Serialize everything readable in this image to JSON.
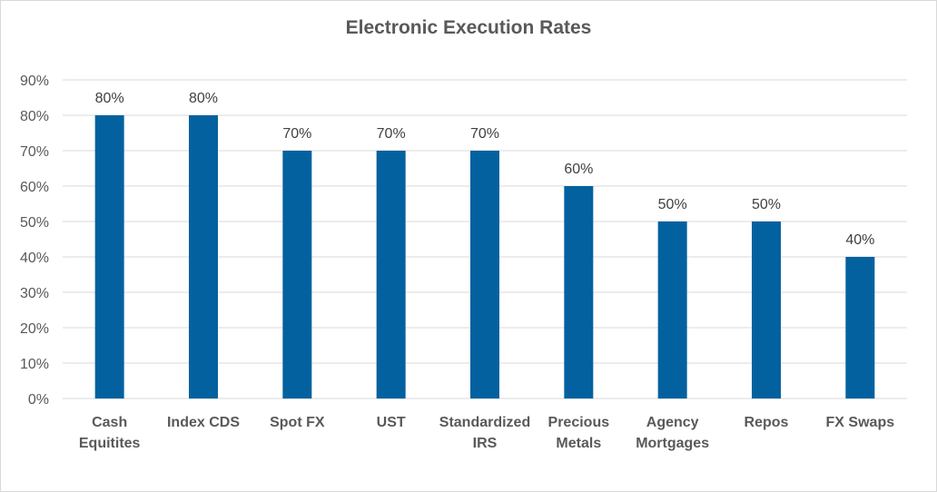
{
  "chart_data": {
    "type": "bar",
    "title": "Electronic Execution Rates",
    "categories": [
      [
        "Cash",
        "Equitites"
      ],
      [
        "Index CDS"
      ],
      [
        "Spot FX"
      ],
      [
        "UST"
      ],
      [
        "Standardized",
        "IRS"
      ],
      [
        "Precious",
        "Metals"
      ],
      [
        "Agency",
        "Mortgages"
      ],
      [
        "Repos"
      ],
      [
        "FX Swaps"
      ]
    ],
    "values": [
      80,
      80,
      70,
      70,
      70,
      60,
      50,
      50,
      40
    ],
    "data_labels": [
      "80%",
      "80%",
      "70%",
      "70%",
      "70%",
      "60%",
      "50%",
      "50%",
      "40%"
    ],
    "y_ticks": [
      "0%",
      "10%",
      "20%",
      "30%",
      "40%",
      "50%",
      "60%",
      "70%",
      "80%",
      "90%"
    ],
    "ylim": [
      0,
      90
    ],
    "y_unit": "%",
    "grid": true,
    "legend": "none",
    "xlabel": "",
    "ylabel": "",
    "colors": {
      "bar": "#04619f",
      "grid": "#d9d9d9",
      "text": "#595959"
    }
  }
}
